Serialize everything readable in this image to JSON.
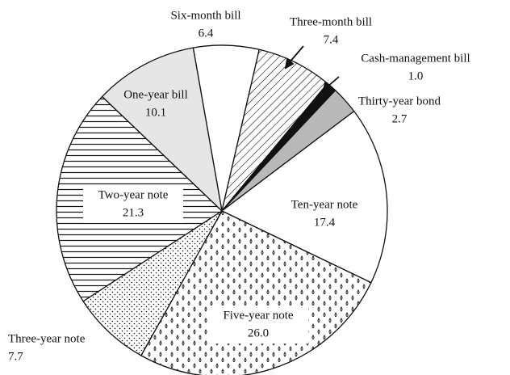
{
  "chart_data": {
    "type": "pie",
    "categories": [
      "Six-month bill",
      "Three-month bill",
      "Cash-management bill",
      "Thirty-year bond",
      "Ten-year note",
      "Five-year note",
      "Three-year note",
      "Two-year note",
      "One-year bill"
    ],
    "values": [
      6.4,
      7.4,
      1.0,
      2.7,
      17.4,
      26.0,
      7.7,
      21.3,
      10.1
    ],
    "value_labels": [
      "6.4",
      "7.4",
      "1.0",
      "2.7",
      "17.4",
      "26.0",
      "7.7",
      "21.3",
      "10.1"
    ]
  }
}
